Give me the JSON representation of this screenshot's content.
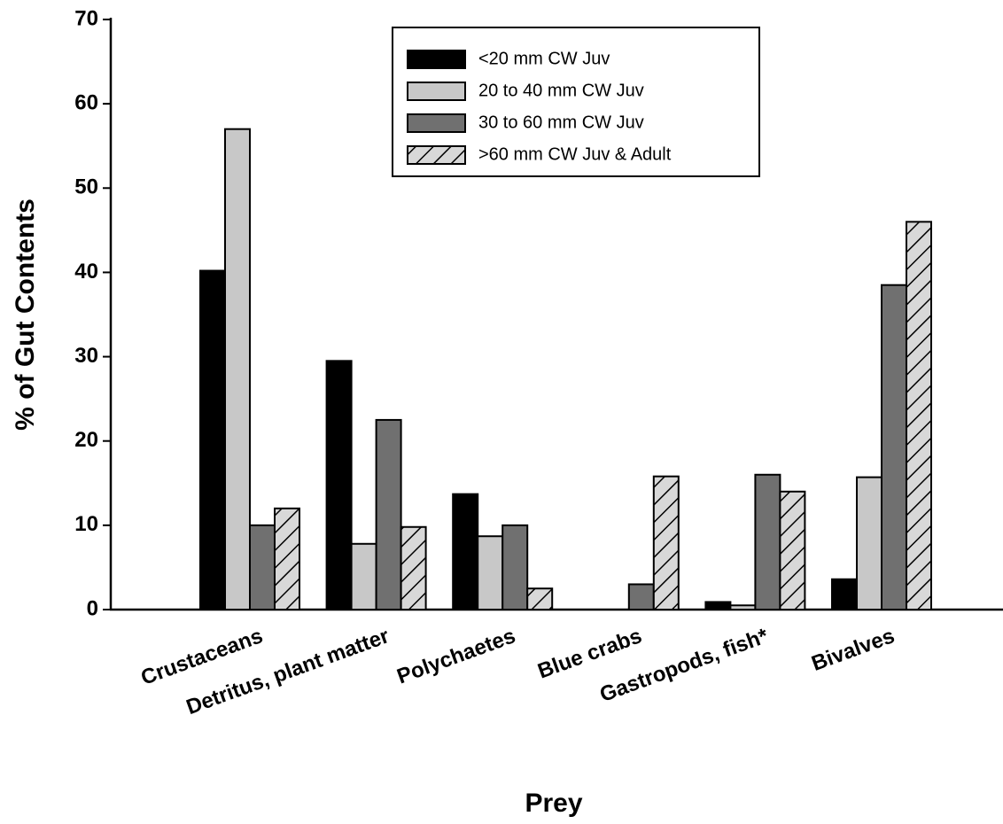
{
  "chart_data": {
    "type": "bar",
    "xlabel": "Prey",
    "ylabel": "% of Gut Contents",
    "categories": [
      "Crustaceans",
      "Detritus, plant matter",
      "Polychaetes",
      "Blue crabs",
      "Gastropods, fish*",
      "Bivalves"
    ],
    "series": [
      {
        "name": "<20 mm CW Juv",
        "color": "#000000",
        "values": [
          40.2,
          29.5,
          13.7,
          0,
          0.9,
          3.6
        ]
      },
      {
        "name": "20 to 40 mm CW Juv",
        "color": "#c8c8c8",
        "values": [
          57,
          7.8,
          8.7,
          0,
          0.5,
          15.7
        ]
      },
      {
        "name": "30 to 60 mm CW Juv",
        "color": "#707070",
        "values": [
          10,
          22.5,
          10,
          3,
          16,
          38.5
        ]
      },
      {
        "name": ">60 mm CW Juv & Adult",
        "color": "#d8d8d8",
        "pattern": "hatch",
        "values": [
          12,
          9.8,
          2.5,
          15.8,
          14,
          46
        ]
      }
    ],
    "ylim": [
      0,
      70
    ],
    "yticks": [
      0,
      10,
      20,
      30,
      40,
      50,
      60,
      70
    ],
    "legend": "upper center"
  }
}
